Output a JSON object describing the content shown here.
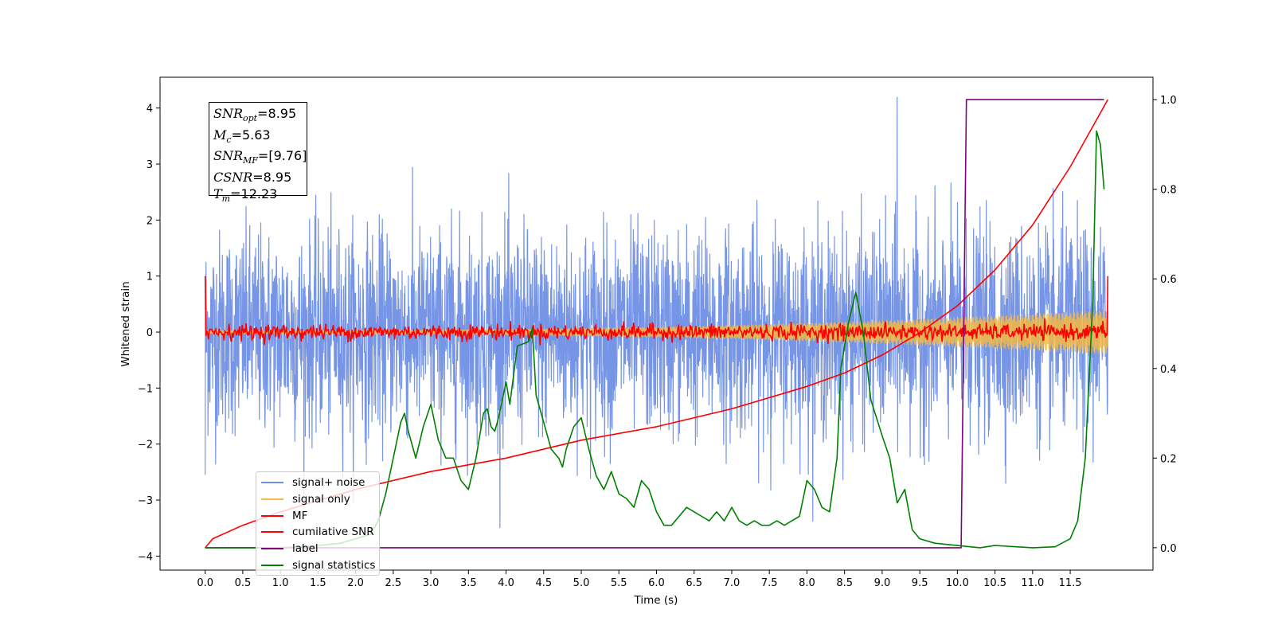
{
  "chart_data": {
    "type": "line",
    "xlabel": "Time (s)",
    "ylabel_left": "Whitened strain",
    "ylabel_right": "",
    "xlim": [
      -0.6,
      12.6
    ],
    "ylim_left": [
      -4.25,
      4.55
    ],
    "ylim_right": [
      -0.05,
      1.05
    ],
    "x_ticks": [
      "0.0",
      "0.5",
      "1.0",
      "1.5",
      "2.0",
      "2.5",
      "3.0",
      "3.5",
      "4.0",
      "4.5",
      "5.0",
      "5.5",
      "6.0",
      "6.5",
      "7.0",
      "7.5",
      "8.0",
      "8.5",
      "9.0",
      "9.5",
      "10.0",
      "10.5",
      "11.0",
      "11.5"
    ],
    "y_ticks_left": [
      "4",
      "3",
      "2",
      "1",
      "0",
      "−1",
      "−2",
      "−3",
      "−4"
    ],
    "y_ticks_right": [
      "1.0",
      "0.8",
      "0.6",
      "0.4",
      "0.2",
      "0.0"
    ],
    "annotation": {
      "snr_opt": "=8.95",
      "mc": "=5.63",
      "snr_mf": "=[9.76]",
      "csnr": "=8.95",
      "tm": "=12.23"
    },
    "series": [
      {
        "name": "signal+ noise",
        "color": "#6f8fe6",
        "axis": "left",
        "style": "noise",
        "x_range": [
          0.0,
          12.0
        ],
        "std": 0.9,
        "x_spikes": [
          0.0,
          9.2
        ],
        "y_spikes": [
          -2.55,
          4.2
        ]
      },
      {
        "name": "signal only",
        "color": "#f5b841",
        "axis": "left",
        "style": "chirp",
        "x_range": [
          0.0,
          12.0
        ],
        "amplitude_start": 0.03,
        "amplitude_end": 0.4
      },
      {
        "name": "MF",
        "color": "#ff0000",
        "axis": "left",
        "style": "noise",
        "x_range": [
          0.0,
          12.0
        ],
        "std": 0.07,
        "edge_value": 1.0
      },
      {
        "name": "cumilative SNR",
        "color": "#ff0000",
        "axis": "right",
        "x": [
          0.0,
          0.1,
          0.5,
          1.0,
          2.0,
          3.0,
          4.0,
          5.0,
          6.0,
          7.0,
          8.0,
          8.5,
          9.0,
          9.5,
          10.0,
          10.5,
          11.0,
          11.5,
          11.8,
          12.0
        ],
        "y": [
          0.0,
          0.02,
          0.05,
          0.08,
          0.13,
          0.17,
          0.2,
          0.24,
          0.27,
          0.31,
          0.36,
          0.39,
          0.43,
          0.48,
          0.54,
          0.62,
          0.72,
          0.85,
          0.94,
          1.0
        ]
      },
      {
        "name": "label",
        "color": "#800080",
        "axis": "right",
        "x": [
          0.0,
          10.05,
          10.12,
          11.95
        ],
        "y": [
          0.0,
          0.0,
          1.0,
          1.0
        ]
      },
      {
        "name": "signal statistics",
        "color": "#008000",
        "axis": "right",
        "x": [
          0.0,
          0.5,
          1.0,
          1.5,
          1.8,
          2.0,
          2.2,
          2.3,
          2.4,
          2.5,
          2.6,
          2.65,
          2.7,
          2.8,
          2.9,
          3.0,
          3.1,
          3.2,
          3.3,
          3.4,
          3.5,
          3.6,
          3.7,
          3.75,
          3.8,
          3.85,
          3.9,
          4.0,
          4.05,
          4.15,
          4.3,
          4.35,
          4.4,
          4.5,
          4.6,
          4.7,
          4.75,
          4.8,
          4.9,
          5.0,
          5.1,
          5.2,
          5.3,
          5.4,
          5.5,
          5.6,
          5.7,
          5.8,
          5.9,
          6.0,
          6.1,
          6.2,
          6.3,
          6.4,
          6.5,
          6.6,
          6.7,
          6.8,
          6.9,
          7.0,
          7.1,
          7.2,
          7.3,
          7.4,
          7.5,
          7.6,
          7.7,
          7.8,
          7.9,
          8.0,
          8.1,
          8.2,
          8.3,
          8.4,
          8.45,
          8.55,
          8.65,
          8.75,
          8.85,
          9.0,
          9.1,
          9.2,
          9.3,
          9.4,
          9.5,
          9.7,
          10.0,
          10.3,
          10.5,
          11.0,
          11.3,
          11.5,
          11.6,
          11.7,
          11.8,
          11.85,
          11.9,
          11.95
        ],
        "y": [
          0.0,
          0.0,
          0.0,
          0.005,
          0.01,
          0.02,
          0.03,
          0.06,
          0.12,
          0.2,
          0.28,
          0.3,
          0.26,
          0.2,
          0.27,
          0.32,
          0.24,
          0.2,
          0.2,
          0.15,
          0.13,
          0.2,
          0.3,
          0.31,
          0.27,
          0.26,
          0.29,
          0.37,
          0.32,
          0.45,
          0.46,
          0.49,
          0.34,
          0.28,
          0.22,
          0.2,
          0.18,
          0.22,
          0.27,
          0.29,
          0.22,
          0.16,
          0.13,
          0.17,
          0.12,
          0.11,
          0.09,
          0.15,
          0.13,
          0.08,
          0.05,
          0.05,
          0.07,
          0.09,
          0.08,
          0.07,
          0.06,
          0.08,
          0.06,
          0.09,
          0.06,
          0.05,
          0.06,
          0.05,
          0.05,
          0.06,
          0.05,
          0.06,
          0.07,
          0.15,
          0.13,
          0.09,
          0.08,
          0.2,
          0.4,
          0.5,
          0.57,
          0.48,
          0.33,
          0.25,
          0.2,
          0.1,
          0.13,
          0.04,
          0.02,
          0.01,
          0.005,
          0.0,
          0.005,
          0.0,
          0.002,
          0.02,
          0.06,
          0.2,
          0.55,
          0.93,
          0.9,
          0.8
        ]
      }
    ],
    "legend_position": "lower-left"
  }
}
